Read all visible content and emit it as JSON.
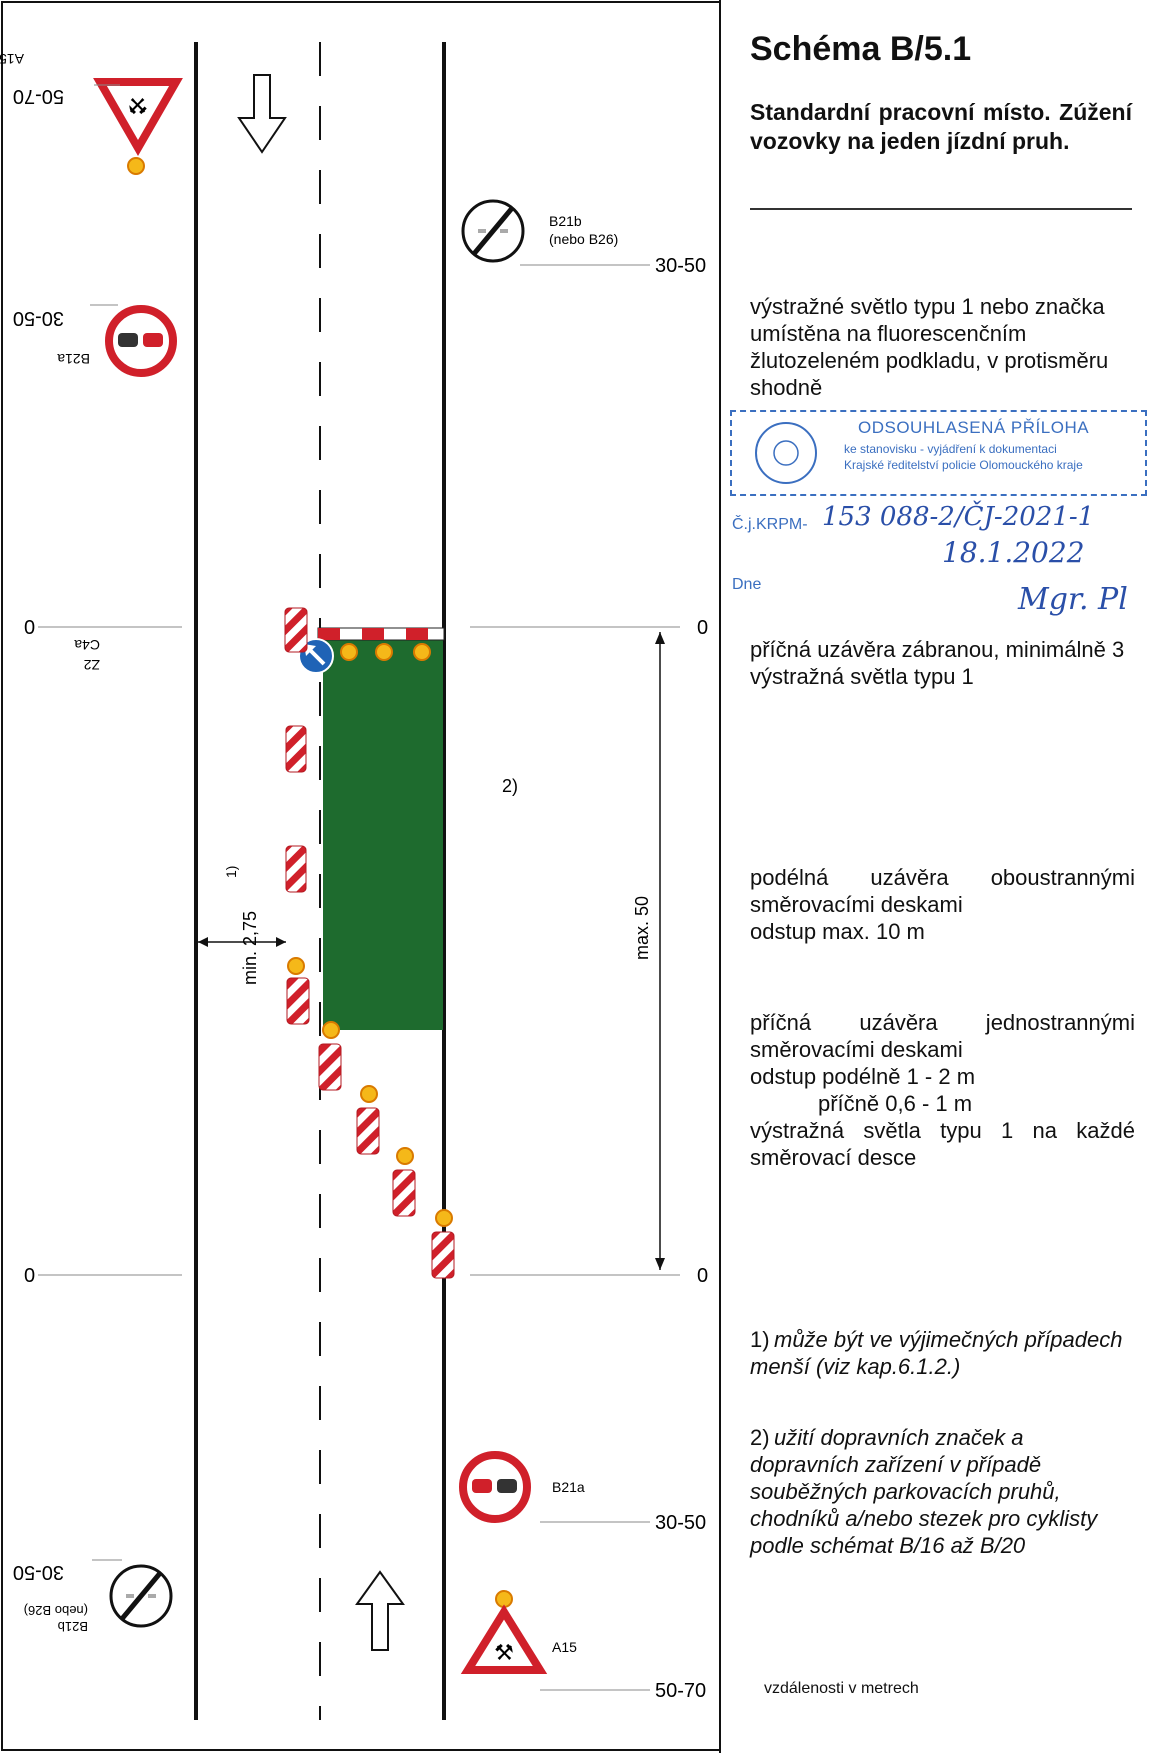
{
  "diagram": {
    "distance_labels": {
      "top_left_a15": "50-70",
      "top_left_b21a": "30-50",
      "top_right_b21b": "30-50",
      "left_zero_top": "0",
      "right_zero_top": "0",
      "left_zero_bottom": "0",
      "right_zero_bottom": "0",
      "bottom_right_b21a": "30-50",
      "bottom_right_a15": "50-70",
      "bottom_left_b21b": "30-50"
    },
    "sign_labels": {
      "a15_top": "A15",
      "b21a_top": "B21a",
      "b21b_top": "B21b",
      "b21b_top_alt": "(nebo B26)",
      "c4a": "C4a",
      "z2": "Z2",
      "b21a_bottom": "B21a",
      "a15_bottom": "A15",
      "b21b_bottom": "B21b",
      "b21b_bottom_alt": "(nebo B26)"
    },
    "dims": {
      "min_width": "min. 2,75",
      "min_width_note": "1)",
      "max_length": "max. 50",
      "parking_note": "2)"
    },
    "colors": {
      "work_area": "#1e6b2e",
      "sign_red": "#d0202a",
      "lamp_yellow": "#f5b819",
      "lamp_border": "#d97a00",
      "blue_sign": "#1f63b6"
    }
  },
  "panel": {
    "title": "Schéma B/5.1",
    "subtitle": "Standardní pracovní místo. Zúžení vozovky na jeden jízdní pruh.",
    "block1": "výstražné světlo typu 1 nebo značka umístěna na fluorescenčním žlutozeleném podkladu, v protisměru shodně",
    "block2": "příčná uzávěra zábranou, minimálně 3 výstražná světla typu 1",
    "block3_line1": "podélná uzávěra oboustrannými směrovacími deskami",
    "block3_line2": "odstup max. 10 m",
    "block4_line1": "příčná uzávěra jednostrannými směrovacími deskami",
    "block4_line2": "odstup podélně 1 - 2 m",
    "block4_line3": "příčně 0,6 - 1 m",
    "block4_line4": "výstražná světla typu 1 na každé směrovací desce",
    "note1_num": "1)",
    "note1": "může být ve výjimečných případech menší (viz kap.6.1.2.)",
    "note2_num": "2)",
    "note2": "užití dopravních značek a dopravních zařízení v případě souběžných parkovacích pruhů, chodníků a/nebo stezek pro cyklisty podle schémat B/16 až B/20",
    "footer": "vzdálenosti v metrech"
  },
  "stamp": {
    "line1": "ODSOUHLASENÁ PŘÍLOHA",
    "line2": "ke stanovisku - vyjádření k dokumentaci",
    "line3": "Krajské ředitelství policie Olomouckého kraje",
    "kr_label": "Č.j.KRPM-",
    "kr_number": "153 088-2/ČJ-2021-1",
    "dne_label": "Dne",
    "date": "18.1.2022",
    "signature": "Mgr. Pl"
  }
}
